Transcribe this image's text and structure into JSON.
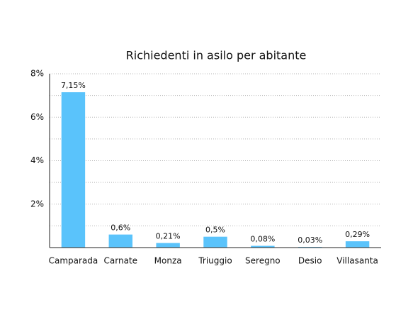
{
  "chart_data": {
    "type": "bar",
    "title": "Richiedenti in asilo per abitante",
    "categories": [
      "Camparada",
      "Carnate",
      "Monza",
      "Triuggio",
      "Seregno",
      "Desio",
      "Villasanta"
    ],
    "values": [
      7.15,
      0.6,
      0.21,
      0.5,
      0.08,
      0.03,
      0.29
    ],
    "value_labels": [
      "7,15%",
      "0,6%",
      "0,21%",
      "0,5%",
      "0,08%",
      "0,03%",
      "0,29%"
    ],
    "color": "#5ac3fb",
    "ylim": [
      0,
      8
    ],
    "yticks": [
      {
        "value": 2,
        "label": "2%"
      },
      {
        "value": 4,
        "label": "4%"
      },
      {
        "value": 6,
        "label": "6%"
      },
      {
        "value": 8,
        "label": "8%"
      }
    ],
    "yminor": [
      1,
      3,
      5,
      7
    ],
    "grid": true
  }
}
